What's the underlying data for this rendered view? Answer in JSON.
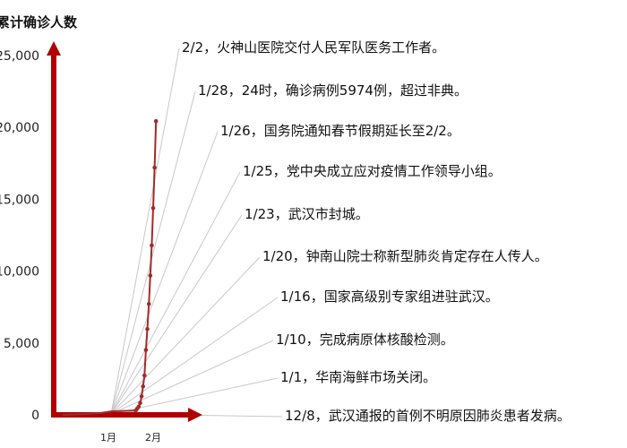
{
  "chart_data": {
    "type": "line",
    "ylabel": "累计确诊人数",
    "ylim": [
      0,
      25000
    ],
    "yticks": [
      "0",
      "5,000",
      "10,000",
      "15,000",
      "20,000",
      "25,000"
    ],
    "ytick_values": [
      0,
      5000,
      10000,
      15000,
      20000,
      25000
    ],
    "xticks": [
      "1月",
      "2月"
    ],
    "grid": false,
    "colors": {
      "axis": "#b00000",
      "series": "#a52a2a",
      "annotation_line": "#c8c8c8"
    },
    "series": [
      {
        "values": [
          {
            "x": "2020-01-20",
            "y": 291
          },
          {
            "x": "2020-01-21",
            "y": 440
          },
          {
            "x": "2020-01-22",
            "y": 571
          },
          {
            "x": "2020-01-23",
            "y": 830
          },
          {
            "x": "2020-01-24",
            "y": 1287
          },
          {
            "x": "2020-01-25",
            "y": 1975
          },
          {
            "x": "2020-01-26",
            "y": 2744
          },
          {
            "x": "2020-01-27",
            "y": 4515
          },
          {
            "x": "2020-01-28",
            "y": 5974
          },
          {
            "x": "2020-01-29",
            "y": 7711
          },
          {
            "x": "2020-01-30",
            "y": 9692
          },
          {
            "x": "2020-01-31",
            "y": 11791
          },
          {
            "x": "2020-02-01",
            "y": 14380
          },
          {
            "x": "2020-02-02",
            "y": 17205
          },
          {
            "x": "2020-02-03",
            "y": 20438
          }
        ]
      }
    ],
    "annotations": [
      {
        "date": "2/2",
        "sep": "，",
        "text": "火神山医院交付人民军队医务工作者。"
      },
      {
        "date": "1/28",
        "sep": "，",
        "text": "24时，确诊病例5974例，超过非典。"
      },
      {
        "date": "1/26",
        "sep": "，",
        "text": "国务院通知春节假期延长至2/2。"
      },
      {
        "date": "1/25",
        "sep": "，",
        "text": "党中央成立应对疫情工作领导小组。"
      },
      {
        "date": "1/23",
        "sep": "，",
        "text": "武汉市封城。"
      },
      {
        "date": "1/20",
        "sep": "，",
        "text": "钟南山院士称新型肺炎肯定存在人传人。"
      },
      {
        "date": "1/16",
        "sep": "，",
        "text": "国家高级别专家组进驻武汉。"
      },
      {
        "date": "1/10",
        "sep": "，",
        "text": "完成病原体核酸检测。"
      },
      {
        "date": "1/1",
        "sep": "，",
        "text": "华南海鲜市场关闭。"
      },
      {
        "date": "12/8",
        "sep": "，",
        "text": "武汉通报的首例不明原因肺炎患者发病。"
      }
    ]
  }
}
